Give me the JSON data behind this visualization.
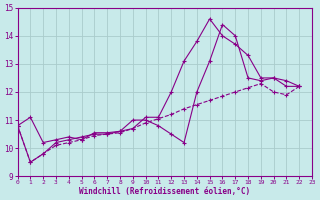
{
  "xlabel": "Windchill (Refroidissement éolien,°C)",
  "xlim": [
    0,
    23
  ],
  "ylim": [
    9,
    15
  ],
  "yticks": [
    9,
    10,
    11,
    12,
    13,
    14,
    15
  ],
  "xticks": [
    0,
    1,
    2,
    3,
    4,
    5,
    6,
    7,
    8,
    9,
    10,
    11,
    12,
    13,
    14,
    15,
    16,
    17,
    18,
    19,
    20,
    21,
    22,
    23
  ],
  "bg_color": "#c8eaea",
  "line_color": "#880088",
  "grid_color": "#aacccc",
  "series1_x": [
    0,
    1,
    2,
    3,
    4,
    5,
    6,
    7,
    8,
    9,
    10,
    11,
    12,
    13,
    14,
    15,
    16,
    17,
    18,
    19,
    20,
    21,
    22
  ],
  "series1_y": [
    10.8,
    11.1,
    10.2,
    10.3,
    10.4,
    10.3,
    10.55,
    10.55,
    10.6,
    10.7,
    11.1,
    11.1,
    12.0,
    13.1,
    13.8,
    14.6,
    14.0,
    13.7,
    13.3,
    12.5,
    12.5,
    12.2,
    12.2
  ],
  "series2_x": [
    0,
    1,
    2,
    3,
    4,
    5,
    6,
    7,
    8,
    9,
    10,
    11,
    12,
    13,
    14,
    15,
    16,
    17,
    18,
    19,
    20,
    21,
    22
  ],
  "series2_y": [
    10.8,
    9.5,
    9.8,
    10.2,
    10.3,
    10.4,
    10.5,
    10.5,
    10.6,
    11.0,
    11.0,
    10.8,
    10.5,
    10.2,
    12.0,
    13.1,
    14.4,
    14.0,
    12.5,
    12.4,
    12.5,
    12.4,
    12.2
  ],
  "series3_x": [
    0,
    1,
    2,
    3,
    4,
    5,
    6,
    7,
    8,
    9,
    10,
    11,
    12,
    13,
    14,
    15,
    16,
    17,
    18,
    19,
    20,
    21,
    22
  ],
  "series3_y": [
    10.8,
    9.5,
    9.8,
    10.1,
    10.2,
    10.3,
    10.45,
    10.5,
    10.55,
    10.7,
    10.9,
    11.05,
    11.2,
    11.4,
    11.55,
    11.7,
    11.85,
    12.0,
    12.15,
    12.3,
    12.0,
    11.9,
    12.2
  ]
}
